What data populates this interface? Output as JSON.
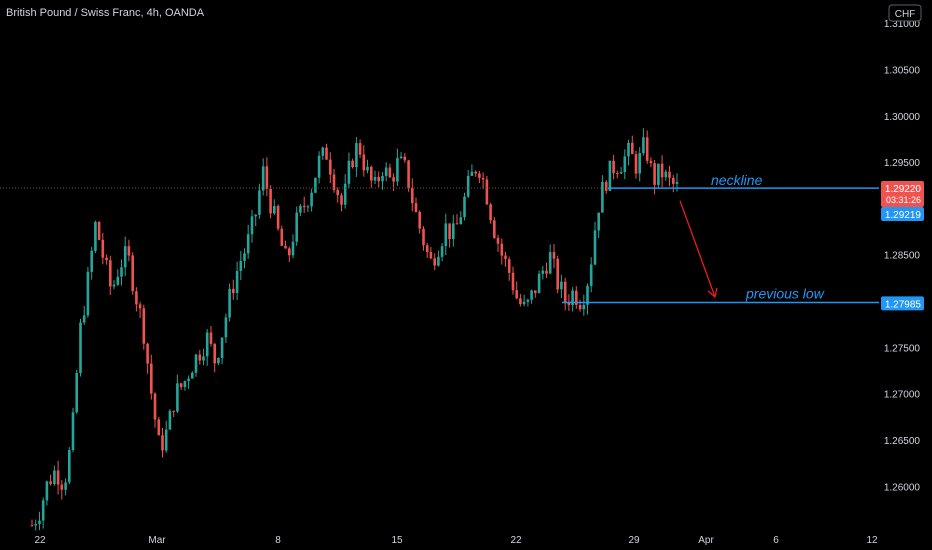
{
  "header": {
    "symbol_text": "British Pound / Swiss Franc, 4h, OANDA",
    "currency_badge": "CHF"
  },
  "colors": {
    "background": "#000000",
    "up": "#26a69a",
    "down": "#ef5350",
    "axis_text": "#d1d4dc",
    "annotation": "#2196f3",
    "arrow": "#e91e1e",
    "price_line": "#7a4a47"
  },
  "chart_data": {
    "type": "candlestick",
    "title": "British Pound / Swiss Franc, 4h, OANDA",
    "xlabel": "",
    "ylabel": "",
    "ylim": [
      1.2555,
      1.3125
    ],
    "y_ticks": [
      "1.26000",
      "1.26500",
      "1.27000",
      "1.27500",
      "1.28000",
      "1.28500",
      "1.29000",
      "1.29500",
      "1.30000",
      "1.30500",
      "1.31000"
    ],
    "x_ticks": [
      "22",
      "Mar",
      "8",
      "15",
      "22",
      "29",
      "Apr",
      "6",
      "12"
    ],
    "grid": false,
    "price_labels": {
      "last_price": "1.29220",
      "countdown": "03:31:26",
      "neckline_price": "1.29219",
      "previous_low_price": "1.27985"
    },
    "annotations": [
      {
        "kind": "horizontal_line",
        "label": "neckline",
        "price": 1.29219
      },
      {
        "kind": "horizontal_line",
        "label": "previous low",
        "price": 1.27985
      },
      {
        "kind": "arrow",
        "label": "",
        "from_price": 1.2917,
        "to_price": 1.2798
      }
    ],
    "price_path": [
      1.2558,
      1.2575,
      1.2605,
      1.2618,
      1.2602,
      1.265,
      1.2765,
      1.282,
      1.2884,
      1.2845,
      1.281,
      1.284,
      1.285,
      1.2808,
      1.277,
      1.27,
      1.264,
      1.266,
      1.27,
      1.271,
      1.273,
      1.2745,
      1.276,
      1.2735,
      1.277,
      1.281,
      1.284,
      1.286,
      1.289,
      1.294,
      1.2905,
      1.287,
      1.284,
      1.288,
      1.29,
      1.292,
      1.295,
      1.296,
      1.293,
      1.29,
      1.295,
      1.297,
      1.294,
      1.292,
      1.2945,
      1.293,
      1.295,
      1.294,
      1.29,
      1.287,
      1.284,
      1.286,
      1.288,
      1.287,
      1.29,
      1.293,
      1.295,
      1.292,
      1.288,
      1.285,
      1.283,
      1.28,
      1.279,
      1.281,
      1.283,
      1.285,
      1.282,
      1.28,
      1.281,
      1.28,
      1.283,
      1.29,
      1.293,
      1.2945,
      1.295,
      1.296,
      1.2945,
      1.297,
      1.293,
      1.294,
      1.2928,
      1.2922
    ]
  }
}
